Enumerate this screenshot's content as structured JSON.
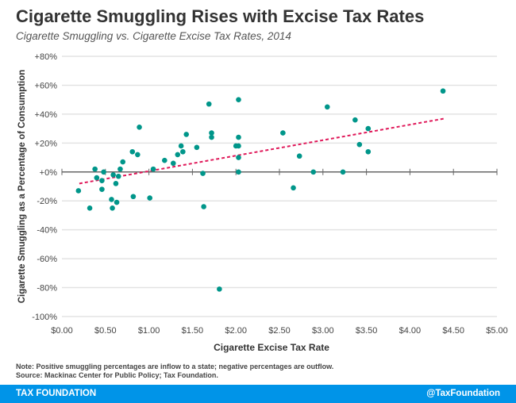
{
  "chart_data": {
    "type": "scatter",
    "title": "Cigarette Smuggling Rises with Excise Tax Rates",
    "subtitle": "Cigarette Smuggling vs. Cigarette Excise Tax Rates, 2014",
    "xlabel": "Cigarette Excise Tax Rate",
    "ylabel": "Cigarette Smuggling as a Percentage of Consumption",
    "xlim": [
      0,
      5
    ],
    "ylim": [
      -100,
      80
    ],
    "xticks": [
      "$0.00",
      "$0.50",
      "$1.00",
      "$1.50",
      "$2.00",
      "$2.50",
      "$3.00",
      "$3.50",
      "$4.00",
      "$4.50",
      "$5.00"
    ],
    "yticks": [
      "+80%",
      "+60%",
      "+40%",
      "+20%",
      "+0%",
      "-20%",
      "-40%",
      "-60%",
      "-80%",
      "-100%"
    ],
    "grid": true,
    "points": [
      [
        0.19,
        -13
      ],
      [
        0.32,
        -25
      ],
      [
        0.38,
        2
      ],
      [
        0.4,
        -4
      ],
      [
        0.46,
        -6
      ],
      [
        0.46,
        -12
      ],
      [
        0.48,
        0
      ],
      [
        0.57,
        -19
      ],
      [
        0.58,
        -25
      ],
      [
        0.59,
        -2
      ],
      [
        0.62,
        -8
      ],
      [
        0.63,
        -21
      ],
      [
        0.65,
        -3
      ],
      [
        0.67,
        2
      ],
      [
        0.7,
        7
      ],
      [
        0.81,
        14
      ],
      [
        0.82,
        -17
      ],
      [
        0.87,
        12
      ],
      [
        0.89,
        31
      ],
      [
        1.01,
        -18
      ],
      [
        1.05,
        2
      ],
      [
        1.18,
        8
      ],
      [
        1.28,
        6
      ],
      [
        1.33,
        12
      ],
      [
        1.37,
        18
      ],
      [
        1.39,
        14
      ],
      [
        1.43,
        26
      ],
      [
        1.55,
        17
      ],
      [
        1.62,
        -1
      ],
      [
        1.63,
        -24
      ],
      [
        1.69,
        47
      ],
      [
        1.72,
        27
      ],
      [
        1.72,
        24
      ],
      [
        1.81,
        -81
      ],
      [
        2.0,
        18
      ],
      [
        2.03,
        18
      ],
      [
        2.03,
        50
      ],
      [
        2.03,
        24
      ],
      [
        2.03,
        10
      ],
      [
        2.03,
        0
      ],
      [
        2.54,
        27
      ],
      [
        2.66,
        -11
      ],
      [
        2.73,
        11
      ],
      [
        2.89,
        0
      ],
      [
        3.05,
        45
      ],
      [
        3.23,
        0
      ],
      [
        3.37,
        36
      ],
      [
        3.42,
        19
      ],
      [
        3.52,
        30
      ],
      [
        3.52,
        14
      ],
      [
        4.38,
        56
      ]
    ],
    "trendline": [
      [
        0.2,
        -8
      ],
      [
        4.4,
        37
      ]
    ],
    "colors": {
      "point": "#00968a",
      "trend": "#e0195a"
    }
  },
  "note": "Note: Positive smuggling percentages are inflow to a state; negative percentages are outflow.",
  "source": "Source: Mackinac Center for Public Policy; Tax Foundation.",
  "footer": {
    "left": "TAX FOUNDATION",
    "right": "@TaxFoundation"
  }
}
